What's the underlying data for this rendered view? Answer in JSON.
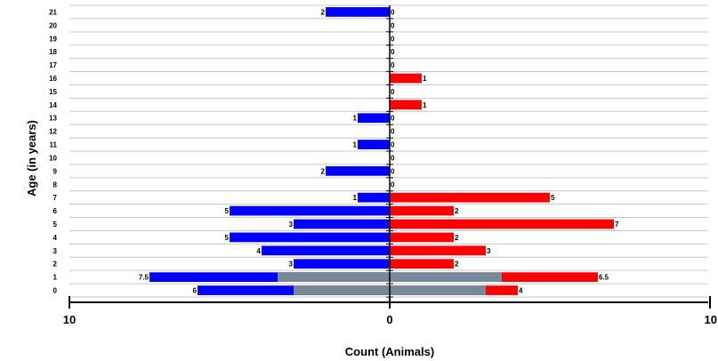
{
  "chart_data": {
    "type": "bar",
    "orientation": "horizontal-population-pyramid",
    "title": "",
    "xlabel": "Count (Animals)",
    "ylabel": "Age (in years)",
    "xlim": [
      -10,
      10
    ],
    "x_ticks": [
      -10,
      0,
      10
    ],
    "x_tick_labels": [
      "10",
      "0",
      "10"
    ],
    "categories": [
      "0",
      "1",
      "2",
      "3",
      "4",
      "5",
      "6",
      "7",
      "8",
      "9",
      "10",
      "11",
      "12",
      "13",
      "14",
      "15",
      "16",
      "17",
      "18",
      "19",
      "20",
      "21"
    ],
    "grid": true,
    "colors": {
      "left": "#0000ff",
      "right": "#ff0000",
      "unknown": "#778899",
      "grid": "#c8c8c8",
      "axis": "#000000"
    },
    "series": [
      {
        "side": "left",
        "values": [
          6,
          7.5,
          3,
          4,
          5,
          3,
          5,
          1,
          0,
          2,
          0,
          1,
          0,
          1,
          0,
          0,
          0,
          0,
          0,
          0,
          0,
          2
        ],
        "labels": [
          "6",
          "7.5",
          "3",
          "4",
          "5",
          "3",
          "5",
          "1",
          "",
          "2",
          "",
          "1",
          "",
          "1",
          "",
          "",
          "",
          "",
          "",
          "",
          "",
          "2"
        ]
      },
      {
        "side": "left-unknown",
        "values": [
          3,
          3.5,
          0,
          0,
          0,
          0,
          0,
          0,
          0,
          0,
          0,
          0,
          0,
          0,
          0,
          0,
          0,
          0,
          0,
          0,
          0,
          0
        ]
      },
      {
        "side": "right",
        "values": [
          4,
          6.5,
          2,
          3,
          2,
          7,
          2,
          5,
          0,
          0,
          0,
          0,
          0,
          0,
          1,
          0,
          1,
          0,
          0,
          0,
          0,
          0
        ],
        "labels": [
          "4",
          "6.5",
          "2",
          "3",
          "2",
          "7",
          "2",
          "5",
          "0",
          "0",
          "0",
          "0",
          "0",
          "0",
          "1",
          "0",
          "1",
          "0",
          "0",
          "0",
          "0",
          "0"
        ]
      },
      {
        "side": "right-unknown",
        "values": [
          3,
          3.5,
          0,
          0,
          0,
          0,
          0,
          0,
          0,
          0,
          0,
          0,
          0,
          0,
          0,
          0,
          0,
          0,
          0,
          0,
          0,
          0
        ]
      }
    ]
  }
}
